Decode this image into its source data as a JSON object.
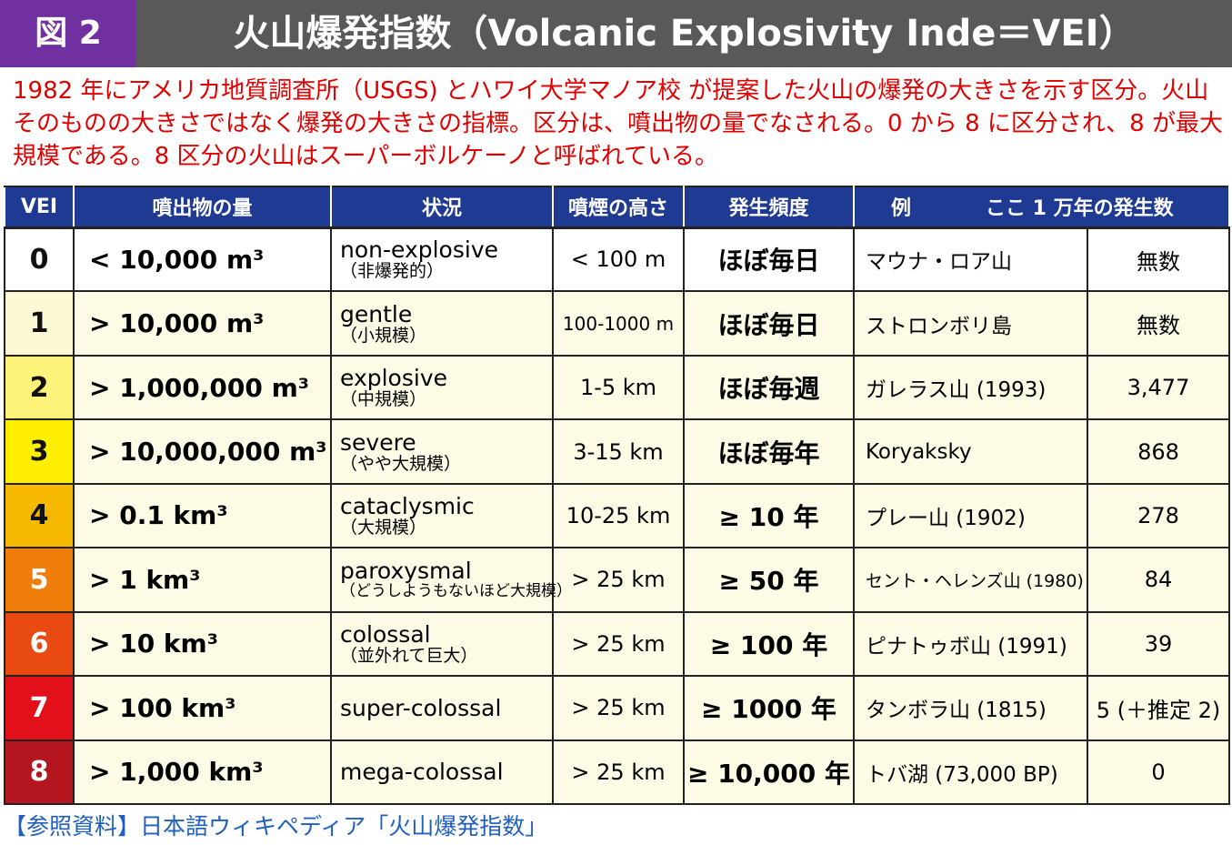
{
  "header": {
    "figure_label": "図 2",
    "title": "火山爆発指数（Volcanic Explosivity Inde＝VEI）"
  },
  "intro": "1982 年にアメリカ地質調査所（USGS) とハワイ大学マノア校 が提案した火山の爆発の大きさを示す区分。火山そのものの大きさではなく爆発の大きさの指標。区分は、噴出物の量でなされる。0 から 8 に区分され、8 が最大規模である。8 区分の火山はスーパーボルケーノと呼ばれている。",
  "table": {
    "headers": {
      "vei": "VEI",
      "amount": "噴出物の量",
      "status": "状況",
      "height": "噴煙の高さ",
      "frequency": "発生頻度",
      "example": "例",
      "count": "ここ 1 万年の発生数"
    },
    "rows": [
      {
        "vei": "0",
        "amount": "< 10,000 m³",
        "status_en": "non-explosive",
        "status_jp": "（非爆発的）",
        "height": "< 100 m",
        "frequency": "ほぼ毎日",
        "example": "マウナ・ロア山",
        "count": "無数",
        "color": "#ffffff"
      },
      {
        "vei": "1",
        "amount": "> 10,000 m³",
        "status_en": "gentle",
        "status_jp": "（小規模）",
        "height": "100-1000 m",
        "frequency": "ほぼ毎日",
        "example": "ストロンボリ島",
        "count": "無数",
        "color": "#fdf8d4"
      },
      {
        "vei": "2",
        "amount": "> 1,000,000 m³",
        "status_en": "explosive",
        "status_jp": "（中規模）",
        "height": "1-5 km",
        "frequency": "ほぼ毎週",
        "example": "ガレラス山 (1993)",
        "count": "3,477",
        "color": "#fdf27a"
      },
      {
        "vei": "3",
        "amount": "> 10,000,000 m³",
        "status_en": "severe",
        "status_jp": "（やや大規模）",
        "height": "3-15 km",
        "frequency": "ほぼ毎年",
        "example": "Koryaksky",
        "count": "868",
        "color": "#ffee00"
      },
      {
        "vei": "4",
        "amount": "> 0.1 km³",
        "status_en": "cataclysmic",
        "status_jp": "（大規模）",
        "height": "10-25 km",
        "frequency": "≥ 10 年",
        "example": "プレー山 (1902)",
        "count": "278",
        "color": "#f7b800"
      },
      {
        "vei": "5",
        "amount": "> 1 km³",
        "status_en": "paroxysmal",
        "status_jp": "（どうしようもないほど大規模）",
        "height": "> 25 km",
        "frequency": "≥ 50 年",
        "example": "セント・ヘレンズ山 (1980)",
        "count": "84",
        "color": "#ef7d0a"
      },
      {
        "vei": "6",
        "amount": "> 10 km³",
        "status_en": "colossal",
        "status_jp": "（並外れて巨大）",
        "height": "> 25 km",
        "frequency": "≥ 100 年",
        "example": "ピナトゥボ山 (1991)",
        "count": "39",
        "color": "#e84a12"
      },
      {
        "vei": "7",
        "amount": "> 100 km³",
        "status_en": "super-colossal",
        "status_jp": "",
        "height": "> 25 km",
        "frequency": "≥ 1000 年",
        "example": "タンボラ山 (1815)",
        "count": "5 (＋推定 2)",
        "color": "#e2101a"
      },
      {
        "vei": "8",
        "amount": "> 1,000 km³",
        "status_en": "mega-colossal",
        "status_jp": "",
        "height": "> 25 km",
        "frequency": "≥ 10,000 年",
        "example": "トバ湖 (73,000 BP)",
        "count": "0",
        "color": "#b5151f"
      }
    ]
  },
  "reference": "【参照資料】日本語ウィキペディア「火山爆発指数」",
  "colors": {
    "header_bg": "#595959",
    "figure_label_bg": "#7030a0",
    "table_header_bg": "#1f3a93",
    "intro_text": "#e00000",
    "reference_text": "#1f5fbf",
    "row_bg_white": "#ffffff",
    "row_bg_cream": "#fdfbe6"
  }
}
